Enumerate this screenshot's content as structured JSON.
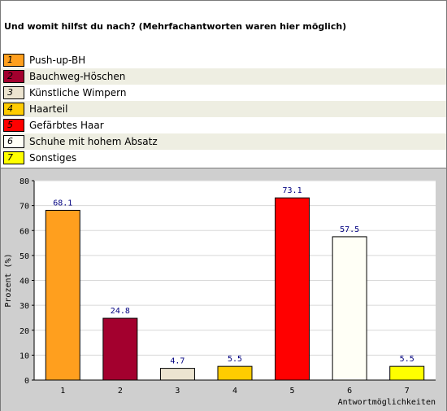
{
  "question": "Und womit hilfst du nach? (Mehrfachantworten waren hier möglich)",
  "legend": [
    {
      "num": "1",
      "label": "Push-up-BH",
      "color": "#ff9f1e"
    },
    {
      "num": "2",
      "label": "Bauchweg-Höschen",
      "color": "#a3002e"
    },
    {
      "num": "3",
      "label": "Künstliche Wimpern",
      "color": "#ece4d0"
    },
    {
      "num": "4",
      "label": "Haarteil",
      "color": "#ffcc00"
    },
    {
      "num": "5",
      "label": "Gefärbtes Haar",
      "color": "#ff0000"
    },
    {
      "num": "6",
      "label": "Schuhe mit hohem Absatz",
      "color": "#fffff6"
    },
    {
      "num": "7",
      "label": "Sonstiges",
      "color": "#ffff00"
    }
  ],
  "chart_data": {
    "type": "bar",
    "categories": [
      "1",
      "2",
      "3",
      "4",
      "5",
      "6",
      "7"
    ],
    "values": [
      68.1,
      24.8,
      4.7,
      5.5,
      73.1,
      57.5,
      5.5
    ],
    "value_labels": [
      "68.1",
      "24.8",
      "4.7",
      "5.5",
      "73.1",
      "57.5",
      "5.5"
    ],
    "colors": [
      "#ff9f1e",
      "#a3002e",
      "#ece4d0",
      "#ffcc00",
      "#ff0000",
      "#fffff6",
      "#ffff00"
    ],
    "ylabel": "Prozent (%)",
    "xlabel": "Antwortmöglichkeiten",
    "ylim": [
      0,
      80
    ],
    "yticks": [
      "0",
      "10",
      "20",
      "30",
      "40",
      "50",
      "60",
      "70",
      "80"
    ],
    "grid": true,
    "label_color": "#000080"
  }
}
